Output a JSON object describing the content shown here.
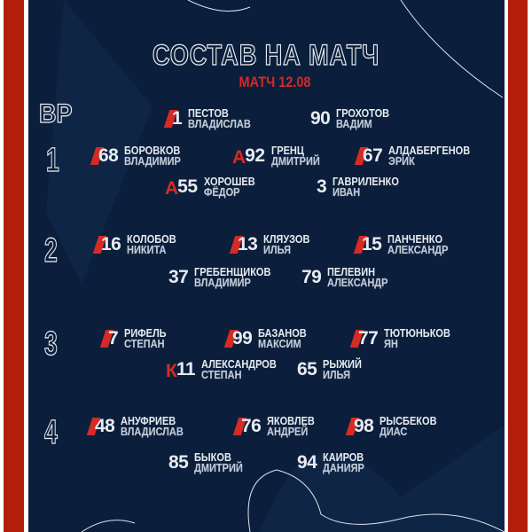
{
  "header": {
    "title": "СОСТАВ НА МАТЧ",
    "subtitle": "МАТЧ 12.08"
  },
  "colors": {
    "background": "#0b1f3c",
    "accent": "#b31e0c",
    "highlight": "#d62a24",
    "text": "#e8ebf0"
  },
  "lines": [
    {
      "label": "ВР"
    },
    {
      "label": "1"
    },
    {
      "label": "2"
    },
    {
      "label": "3"
    },
    {
      "label": "4"
    }
  ],
  "players": [
    {
      "number": "1",
      "surname": "ПЕСТОВ",
      "name": "ВЛАДИСЛАВ",
      "mark": "slash"
    },
    {
      "number": "90",
      "surname": "ГРОХОТОВ",
      "name": "ВАДИМ",
      "mark": ""
    },
    {
      "number": "68",
      "surname": "БОРОВКОВ",
      "name": "ВЛАДИМИР",
      "mark": "slash"
    },
    {
      "number": "92",
      "surname": "ГРЕНЦ",
      "name": "ДМИТРИЙ",
      "mark": "А"
    },
    {
      "number": "67",
      "surname": "АЛДАБЕРГЕНОВ",
      "name": "ЭРИК",
      "mark": "slash"
    },
    {
      "number": "55",
      "surname": "ХОРОШЕВ",
      "name": "ФЁДОР",
      "mark": "А"
    },
    {
      "number": "3",
      "surname": "ГАВРИЛЕНКО",
      "name": "ИВАН",
      "mark": ""
    },
    {
      "number": "16",
      "surname": "КОЛОБОВ",
      "name": "НИКИТА",
      "mark": "slash"
    },
    {
      "number": "13",
      "surname": "КЛЯУЗОВ",
      "name": "ИЛЬЯ",
      "mark": "slash"
    },
    {
      "number": "15",
      "surname": "ПАНЧЕНКО",
      "name": "АЛЕКСАНДР",
      "mark": "slash"
    },
    {
      "number": "37",
      "surname": "ГРЕБЕНЩИКОВ",
      "name": "ВЛАДИМИР",
      "mark": ""
    },
    {
      "number": "79",
      "surname": "ПЕЛЕВИН",
      "name": "АЛЕКСАНДР",
      "mark": ""
    },
    {
      "number": "7",
      "surname": "РИФЕЛЬ",
      "name": "СТЕПАН",
      "mark": "slash"
    },
    {
      "number": "99",
      "surname": "БАЗАНОВ",
      "name": "МАКСИМ",
      "mark": "slash"
    },
    {
      "number": "77",
      "surname": "ТЮТЮНЬКОВ",
      "name": "ЯН",
      "mark": "slash"
    },
    {
      "number": "11",
      "surname": "АЛЕКСАНДРОВ",
      "name": "СТЕПАН",
      "mark": "К"
    },
    {
      "number": "65",
      "surname": "РЫЖИЙ",
      "name": "ИЛЬЯ",
      "mark": ""
    },
    {
      "number": "48",
      "surname": "АНУФРИЕВ",
      "name": "ВЛАДИСЛАВ",
      "mark": "slash"
    },
    {
      "number": "76",
      "surname": "ЯКОВЛЕВ",
      "name": "АНДРЕЙ",
      "mark": "slash"
    },
    {
      "number": "98",
      "surname": "РЫСБЕКОВ",
      "name": "ДИАС",
      "mark": "slash"
    },
    {
      "number": "85",
      "surname": "БЫКОВ",
      "name": "ДМИТРИЙ",
      "mark": ""
    },
    {
      "number": "94",
      "surname": "КАИРОВ",
      "name": "ДАНИЯР",
      "mark": ""
    }
  ]
}
